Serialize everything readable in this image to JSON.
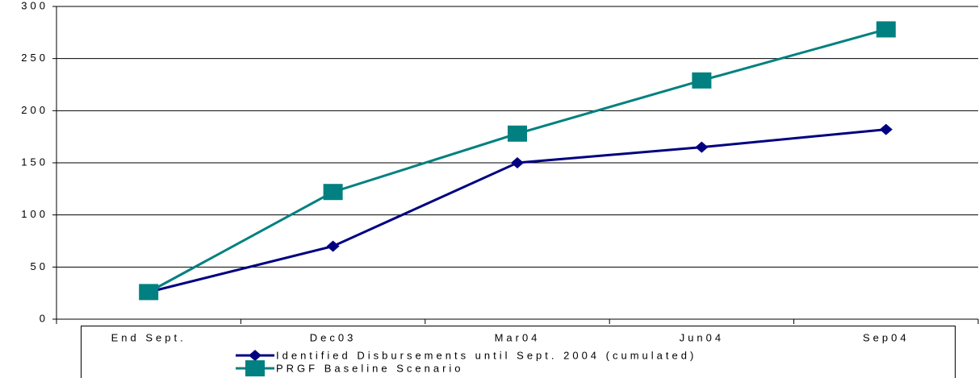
{
  "chart_data": {
    "type": "line",
    "categories": [
      "End Sept.",
      "Dec03",
      "Mar04",
      "Jun04",
      "Sep04"
    ],
    "series": [
      {
        "name": "Identified Disbursements until Sept. 2004 (cumulated)",
        "color": "#000080",
        "marker": "diamond",
        "values": [
          26,
          70,
          150,
          165,
          182
        ]
      },
      {
        "name": "PRGF Baseline Scenario",
        "color": "#008080",
        "marker": "square",
        "values": [
          26,
          122,
          178,
          229,
          278
        ]
      }
    ],
    "ylim": [
      0,
      300
    ],
    "yticks": [
      0,
      50,
      100,
      150,
      200,
      250,
      300
    ],
    "grid": true
  }
}
